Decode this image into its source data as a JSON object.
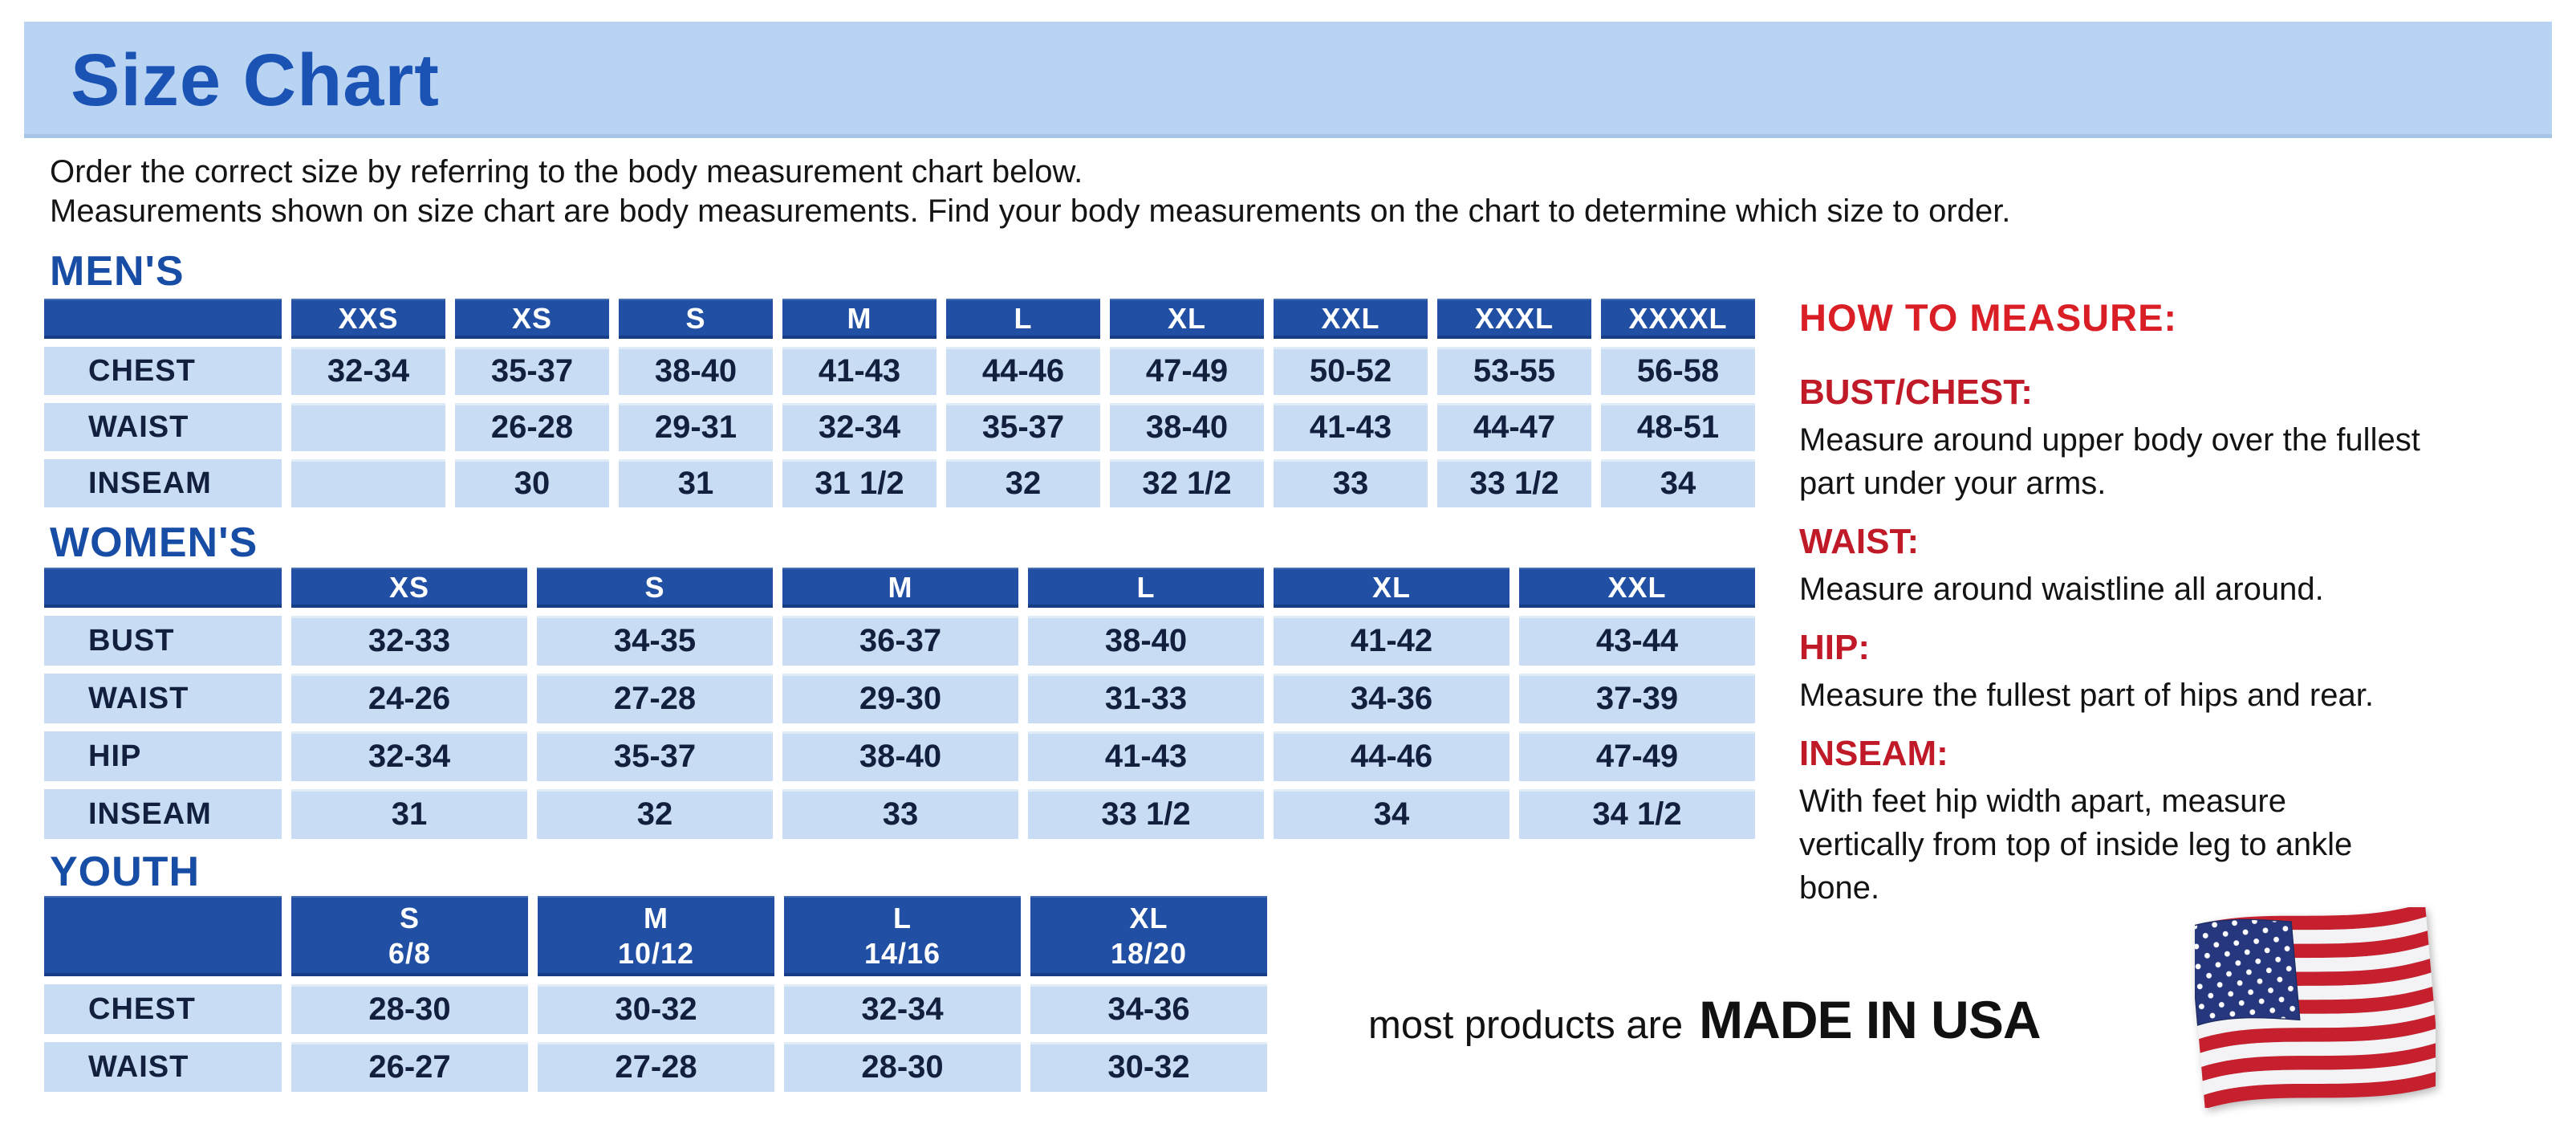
{
  "page": {
    "title": "Size Chart",
    "intro": [
      "Order the correct size by referring to the body measurement chart below.",
      "Measurements shown on size chart are body measurements.  Find your body measurements on the chart to determine which size to order."
    ]
  },
  "colors": {
    "banner_bg": "#b9d3f3",
    "title_blue": "#1b53b5",
    "section_heading_blue": "#184da6",
    "table_header_bg": "#204fa4",
    "table_cell_bg": "#c8dcf4",
    "table_text_navy": "#13203d",
    "measure_heading_red": "#da1e26",
    "measure_label_red": "#c01a28"
  },
  "tables": {
    "mens": {
      "heading": "MEN'S",
      "sizes": [
        "XXS",
        "XS",
        "S",
        "M",
        "L",
        "XL",
        "XXL",
        "XXXL",
        "XXXXL"
      ],
      "rows": [
        {
          "label": "CHEST",
          "values": [
            "32-34",
            "35-37",
            "38-40",
            "41-43",
            "44-46",
            "47-49",
            "50-52",
            "53-55",
            "56-58"
          ]
        },
        {
          "label": "WAIST",
          "values": [
            "",
            "26-28",
            "29-31",
            "32-34",
            "35-37",
            "38-40",
            "41-43",
            "44-47",
            "48-51"
          ]
        },
        {
          "label": "INSEAM",
          "values": [
            "",
            "30",
            "31",
            "31 1/2",
            "32",
            "32 1/2",
            "33",
            "33 1/2",
            "34"
          ]
        }
      ]
    },
    "womens": {
      "heading": "WOMEN'S",
      "sizes": [
        "XS",
        "S",
        "M",
        "L",
        "XL",
        "XXL"
      ],
      "rows": [
        {
          "label": "BUST",
          "values": [
            "32-33",
            "34-35",
            "36-37",
            "38-40",
            "41-42",
            "43-44"
          ]
        },
        {
          "label": "WAIST",
          "values": [
            "24-26",
            "27-28",
            "29-30",
            "31-33",
            "34-36",
            "37-39"
          ]
        },
        {
          "label": "HIP",
          "values": [
            "32-34",
            "35-37",
            "38-40",
            "41-43",
            "44-46",
            "47-49"
          ]
        },
        {
          "label": "INSEAM",
          "values": [
            "31",
            "32",
            "33",
            "33 1/2",
            "34",
            "34 1/2"
          ]
        }
      ]
    },
    "youth": {
      "heading": "YOUTH",
      "sizes": [
        [
          "S",
          "6/8"
        ],
        [
          "M",
          "10/12"
        ],
        [
          "L",
          "14/16"
        ],
        [
          "XL",
          "18/20"
        ]
      ],
      "rows": [
        {
          "label": "CHEST",
          "values": [
            "28-30",
            "30-32",
            "32-34",
            "34-36"
          ]
        },
        {
          "label": "WAIST",
          "values": [
            "26-27",
            "27-28",
            "28-30",
            "30-32"
          ]
        }
      ]
    }
  },
  "how_to_measure": {
    "heading": "HOW TO MEASURE:",
    "sections": [
      {
        "id": "bust",
        "label": "BUST/CHEST:",
        "text": "Measure around upper body over the fullest part under your arms."
      },
      {
        "id": "waist",
        "label": "WAIST:",
        "text": "Measure around waistline all around."
      },
      {
        "id": "hip",
        "label": "HIP:",
        "text": "Measure the fullest part of hips and rear."
      },
      {
        "id": "inseam",
        "label": "INSEAM:",
        "text": "With feet hip width apart, measure vertically from top of inside leg to ankle bone."
      }
    ]
  },
  "footer": {
    "prefix": "most products are",
    "made_in": "MADE IN USA",
    "flag_icon": "usa-flag-icon"
  }
}
